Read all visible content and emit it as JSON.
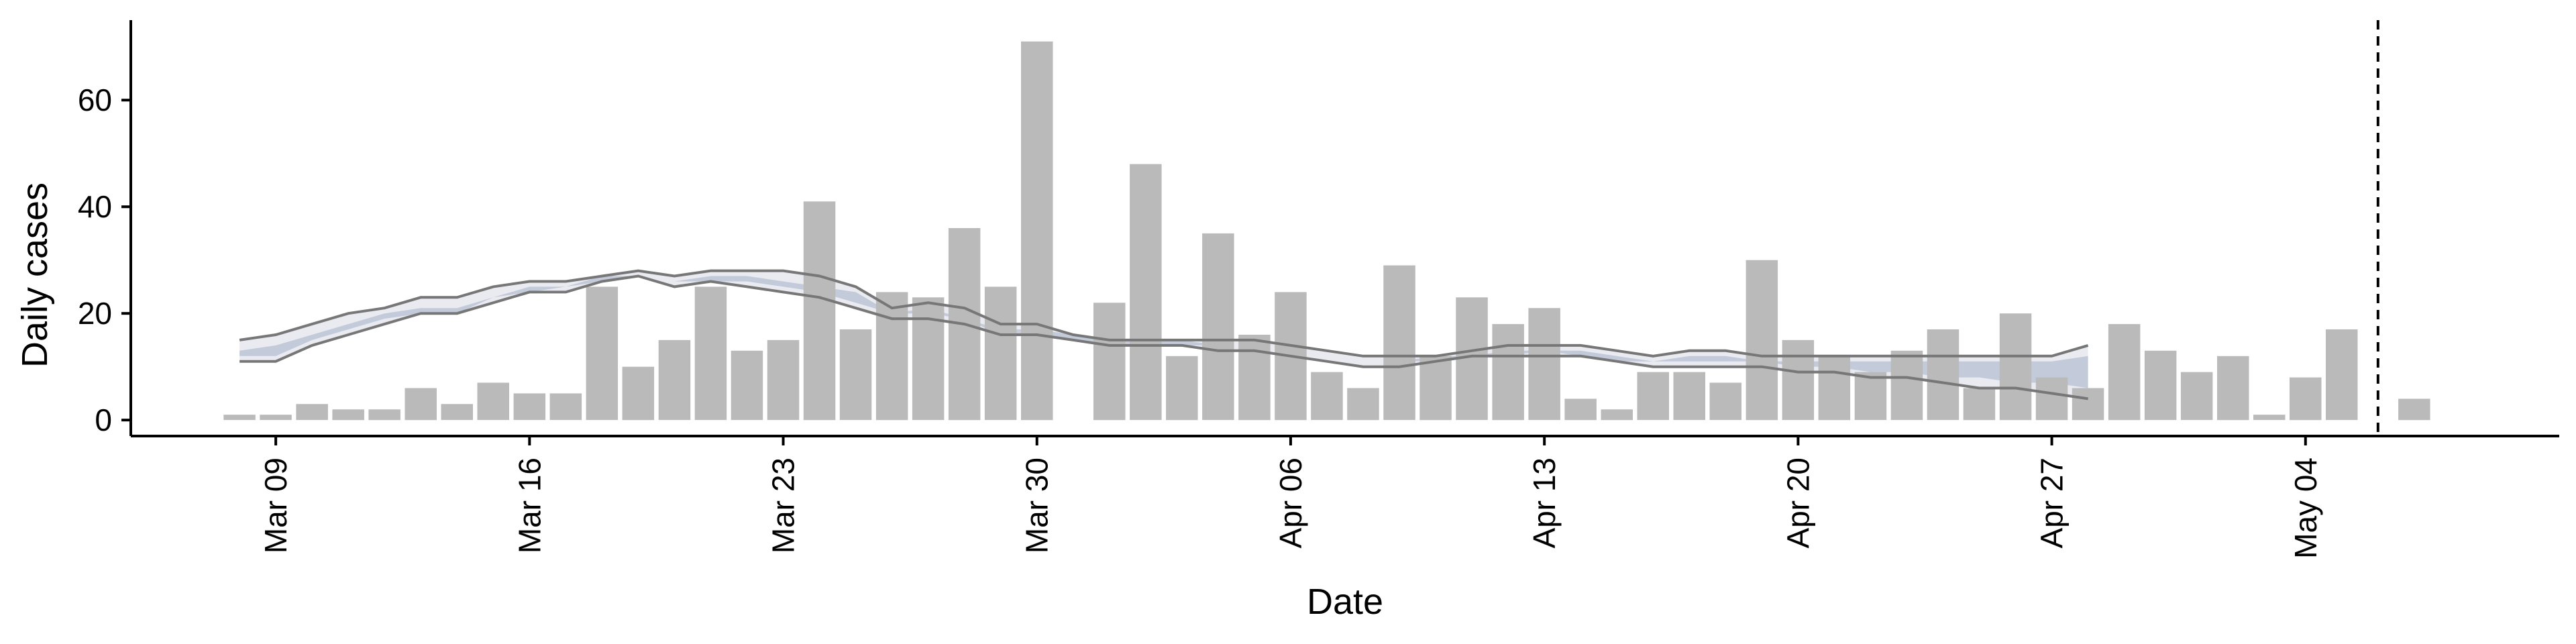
{
  "chart_data": {
    "type": "bar",
    "xlabel": "Date",
    "ylabel": "Daily cases",
    "ylim": [
      -3,
      75
    ],
    "yticks": [
      0,
      20,
      40,
      60
    ],
    "xticks": [
      "2020-03-09",
      "2020-03-16",
      "2020-03-23",
      "2020-03-30",
      "2020-04-06",
      "2020-04-13",
      "2020-04-20",
      "2020-04-27",
      "2020-05-04"
    ],
    "xtick_labels": [
      "Mar 09",
      "Mar 16",
      "Mar 23",
      "Mar 30",
      "Apr 06",
      "Apr 13",
      "Apr 20",
      "Apr 27",
      "May 04"
    ],
    "xlim": [
      "2020-03-05",
      "2020-05-11"
    ],
    "dates": [
      "2020-03-08",
      "2020-03-09",
      "2020-03-10",
      "2020-03-11",
      "2020-03-12",
      "2020-03-13",
      "2020-03-14",
      "2020-03-15",
      "2020-03-16",
      "2020-03-17",
      "2020-03-18",
      "2020-03-19",
      "2020-03-20",
      "2020-03-21",
      "2020-03-22",
      "2020-03-23",
      "2020-03-24",
      "2020-03-25",
      "2020-03-26",
      "2020-03-27",
      "2020-03-28",
      "2020-03-29",
      "2020-03-30",
      "2020-03-31",
      "2020-04-01",
      "2020-04-02",
      "2020-04-03",
      "2020-04-04",
      "2020-04-05",
      "2020-04-06",
      "2020-04-07",
      "2020-04-08",
      "2020-04-09",
      "2020-04-10",
      "2020-04-11",
      "2020-04-12",
      "2020-04-13",
      "2020-04-14",
      "2020-04-15",
      "2020-04-16",
      "2020-04-17",
      "2020-04-18",
      "2020-04-19",
      "2020-04-20",
      "2020-04-21",
      "2020-04-22",
      "2020-04-23",
      "2020-04-24",
      "2020-04-25",
      "2020-04-26",
      "2020-04-27",
      "2020-04-28",
      "2020-04-29",
      "2020-04-30",
      "2020-05-01",
      "2020-05-02",
      "2020-05-03",
      "2020-05-04",
      "2020-05-05",
      "2020-05-06",
      "2020-05-07"
    ],
    "daily_cases": [
      1,
      1,
      3,
      2,
      2,
      6,
      3,
      7,
      5,
      5,
      25,
      10,
      15,
      25,
      13,
      15,
      41,
      17,
      24,
      23,
      36,
      25,
      71,
      0,
      22,
      48,
      12,
      35,
      16,
      24,
      9,
      6,
      29,
      12,
      23,
      18,
      21,
      4,
      2,
      9,
      9,
      7,
      30,
      15,
      12,
      9,
      13,
      17,
      6,
      20,
      8,
      6,
      18,
      13,
      9,
      12,
      1,
      8,
      17,
      null,
      4
    ],
    "band_dates": [
      "2020-03-08",
      "2020-03-09",
      "2020-03-10",
      "2020-03-11",
      "2020-03-12",
      "2020-03-13",
      "2020-03-14",
      "2020-03-15",
      "2020-03-16",
      "2020-03-17",
      "2020-03-18",
      "2020-03-19",
      "2020-03-20",
      "2020-03-21",
      "2020-03-22",
      "2020-03-23",
      "2020-03-24",
      "2020-03-25",
      "2020-03-26",
      "2020-03-27",
      "2020-03-28",
      "2020-03-29",
      "2020-03-30",
      "2020-03-31",
      "2020-04-01",
      "2020-04-02",
      "2020-04-03",
      "2020-04-04",
      "2020-04-05",
      "2020-04-06",
      "2020-04-07",
      "2020-04-08",
      "2020-04-09",
      "2020-04-10",
      "2020-04-11",
      "2020-04-12",
      "2020-04-13",
      "2020-04-14",
      "2020-04-15",
      "2020-04-16",
      "2020-04-17",
      "2020-04-18",
      "2020-04-19",
      "2020-04-20",
      "2020-04-21",
      "2020-04-22",
      "2020-04-23",
      "2020-04-24",
      "2020-04-25",
      "2020-04-26",
      "2020-04-27",
      "2020-04-28"
    ],
    "band_upper": [
      15,
      16,
      18,
      20,
      21,
      23,
      23,
      25,
      26,
      26,
      27,
      28,
      27,
      28,
      28,
      28,
      27,
      25,
      21,
      22,
      21,
      18,
      18,
      16,
      15,
      15,
      15,
      15,
      15,
      14,
      13,
      12,
      12,
      12,
      13,
      14,
      14,
      14,
      13,
      12,
      13,
      13,
      12,
      12,
      12,
      12,
      12,
      12,
      12,
      12,
      12,
      14
    ],
    "band_lower": [
      11,
      11,
      14,
      16,
      18,
      20,
      20,
      22,
      24,
      24,
      26,
      27,
      25,
      26,
      25,
      24,
      23,
      21,
      19,
      19,
      18,
      16,
      16,
      15,
      14,
      14,
      14,
      13,
      13,
      12,
      11,
      10,
      10,
      11,
      12,
      12,
      12,
      12,
      11,
      10,
      10,
      10,
      10,
      9,
      9,
      8,
      8,
      7,
      6,
      6,
      5,
      4
    ],
    "band_mid_upper": [
      13,
      14,
      16,
      18,
      20,
      21,
      21,
      23,
      25,
      25,
      27,
      27,
      26,
      27,
      27,
      26,
      25,
      24,
      20,
      21,
      19,
      17,
      17,
      16,
      15,
      15,
      15,
      14,
      14,
      13,
      12,
      11,
      11,
      12,
      12,
      13,
      13,
      13,
      12,
      11,
      12,
      12,
      11,
      11,
      11,
      11,
      11,
      11,
      11,
      11,
      11,
      12
    ],
    "band_mid_lower": [
      12,
      12,
      15,
      17,
      19,
      20,
      20,
      23,
      24,
      25,
      26,
      27,
      26,
      26,
      26,
      25,
      24,
      22,
      20,
      20,
      19,
      16,
      16,
      15,
      14,
      14,
      14,
      14,
      14,
      13,
      12,
      11,
      11,
      11,
      12,
      12,
      13,
      12,
      11,
      11,
      11,
      11,
      11,
      10,
      10,
      9,
      9,
      8,
      8,
      7,
      7,
      6
    ],
    "vline_date": "2020-05-06",
    "colors": {
      "bar": "#bababa",
      "band_outer": "#e6e8ef",
      "band_inner": "#b6bfd2",
      "line": "#777777",
      "axis": "#000000"
    },
    "grid": false,
    "legend": "none"
  }
}
